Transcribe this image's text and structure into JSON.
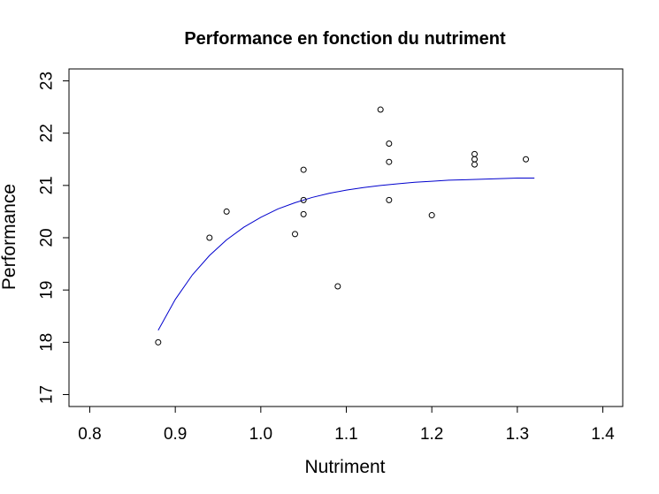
{
  "chart_data": {
    "type": "scatter",
    "title": "Performance en fonction du nutriment",
    "xlabel": "Nutriment",
    "ylabel": "Performance",
    "xlim": [
      0.8,
      1.4
    ],
    "ylim": [
      17,
      23
    ],
    "x_ticks": [
      "0.8",
      "0.9",
      "1.0",
      "1.1",
      "1.2",
      "1.3",
      "1.4"
    ],
    "y_ticks": [
      "17",
      "18",
      "19",
      "20",
      "21",
      "22",
      "23"
    ],
    "points": [
      {
        "x": 0.88,
        "y": 18.0
      },
      {
        "x": 0.94,
        "y": 20.0
      },
      {
        "x": 0.96,
        "y": 20.5
      },
      {
        "x": 1.04,
        "y": 20.07
      },
      {
        "x": 1.05,
        "y": 21.3
      },
      {
        "x": 1.05,
        "y": 20.72
      },
      {
        "x": 1.05,
        "y": 20.45
      },
      {
        "x": 1.09,
        "y": 19.07
      },
      {
        "x": 1.14,
        "y": 22.45
      },
      {
        "x": 1.15,
        "y": 21.8
      },
      {
        "x": 1.15,
        "y": 21.45
      },
      {
        "x": 1.15,
        "y": 20.72
      },
      {
        "x": 1.2,
        "y": 20.43
      },
      {
        "x": 1.25,
        "y": 21.6
      },
      {
        "x": 1.25,
        "y": 21.5
      },
      {
        "x": 1.25,
        "y": 21.4
      },
      {
        "x": 1.31,
        "y": 21.5
      }
    ],
    "fit_curve": {
      "color": "#0000cd",
      "x": [
        0.88,
        0.9,
        0.92,
        0.94,
        0.96,
        0.98,
        1.0,
        1.02,
        1.04,
        1.06,
        1.08,
        1.1,
        1.12,
        1.14,
        1.16,
        1.18,
        1.2,
        1.22,
        1.24,
        1.26,
        1.28,
        1.3,
        1.32
      ],
      "y": [
        18.23,
        18.82,
        19.29,
        19.66,
        19.96,
        20.2,
        20.39,
        20.55,
        20.67,
        20.77,
        20.85,
        20.91,
        20.96,
        21.0,
        21.03,
        21.06,
        21.08,
        21.1,
        21.11,
        21.12,
        21.13,
        21.14,
        21.14
      ]
    }
  }
}
